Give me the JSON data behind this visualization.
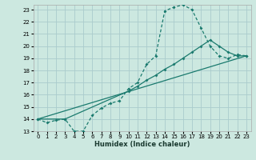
{
  "xlabel": "Humidex (Indice chaleur)",
  "bg_color": "#cce8e0",
  "grid_color": "#aacccc",
  "line_color": "#1a7a6e",
  "xlim": [
    -0.5,
    23.5
  ],
  "ylim": [
    13,
    23.4
  ],
  "xticks": [
    0,
    1,
    2,
    3,
    4,
    5,
    6,
    7,
    8,
    9,
    10,
    11,
    12,
    13,
    14,
    15,
    16,
    17,
    18,
    19,
    20,
    21,
    22,
    23
  ],
  "yticks": [
    13,
    14,
    15,
    16,
    17,
    18,
    19,
    20,
    21,
    22,
    23
  ],
  "line1_x": [
    0,
    1,
    2,
    3,
    4,
    5,
    6,
    7,
    8,
    9,
    10,
    11,
    12,
    13,
    14,
    15,
    16,
    17,
    18,
    19,
    20,
    21,
    22,
    23
  ],
  "line1_y": [
    14.0,
    13.7,
    13.9,
    14.0,
    13.0,
    13.0,
    14.3,
    14.9,
    15.3,
    15.5,
    16.5,
    17.0,
    18.5,
    19.2,
    22.9,
    23.2,
    23.4,
    23.0,
    21.5,
    20.0,
    19.2,
    19.0,
    19.3,
    19.2
  ],
  "line2_x": [
    0,
    3,
    10,
    11,
    12,
    13,
    14,
    15,
    16,
    17,
    18,
    19,
    20,
    21,
    22,
    23
  ],
  "line2_y": [
    14.0,
    14.0,
    16.3,
    16.7,
    17.2,
    17.6,
    18.1,
    18.5,
    19.0,
    19.5,
    20.0,
    20.5,
    20.0,
    19.5,
    19.2,
    19.2
  ],
  "line3_x": [
    0,
    23
  ],
  "line3_y": [
    14.0,
    19.2
  ]
}
